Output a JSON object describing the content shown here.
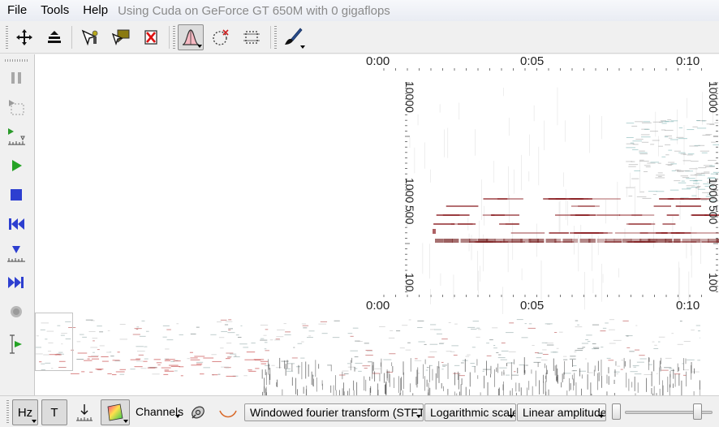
{
  "menubar": {
    "items": [
      "File",
      "Tools",
      "Help"
    ],
    "info": "Using Cuda on GeForce GT 650M with 0 gigaflops"
  },
  "toolbar": {
    "tools": [
      {
        "name": "move-tool-icon",
        "active": false
      },
      {
        "name": "layer-stack-icon",
        "active": false
      },
      {
        "name": "select-point-icon",
        "active": false
      },
      {
        "name": "comment-icon",
        "active": false
      },
      {
        "name": "remove-comment-icon",
        "active": false
      },
      {
        "name": "peak-tool-icon",
        "active": true
      },
      {
        "name": "circle-select-icon",
        "active": false
      },
      {
        "name": "rectangle-select-icon",
        "active": false
      },
      {
        "name": "brush-icon",
        "active": false
      }
    ]
  },
  "left_toolbar": {
    "tools": [
      "pause-icon",
      "play-selection-icon",
      "play-marker-icon",
      "play-icon",
      "stop-icon",
      "skip-back-icon",
      "set-marker-icon",
      "skip-forward-icon",
      "record-icon",
      "follow-playback-icon"
    ]
  },
  "zoom_view": {
    "time_top": [
      "0:00",
      "0:05",
      "0:10"
    ],
    "time_bottom": [
      "0:00",
      "0:05",
      "0:10"
    ],
    "freq_left": [
      "10000",
      "1000",
      "500",
      "100"
    ],
    "freq_right": [
      "10000",
      "1000",
      "500",
      "100"
    ]
  },
  "bottombar": {
    "hz_label": "Hz",
    "t_label": "T",
    "channels_label": "Channels",
    "transform_value": "Windowed fourier transform (STFT)",
    "scale_value": "Logarithmic scale",
    "amplitude_value": "Linear amplitude",
    "slider_value": 0.87
  },
  "colors": {
    "accent": "#8b1e22",
    "menu_info": "#8a8a8a"
  }
}
